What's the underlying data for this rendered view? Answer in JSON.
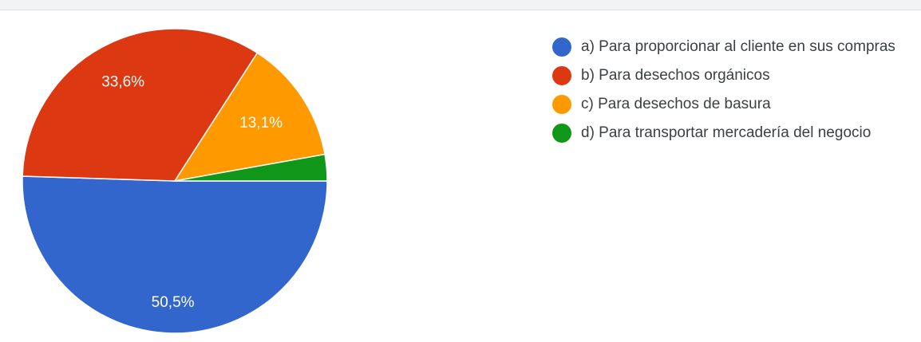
{
  "chart_data": {
    "type": "pie",
    "categories": [
      "a) Para proporcionar al cliente en sus compras",
      "b) Para desechos orgánicos",
      "c) Para desechos de basura",
      "d) Para transportar mercadería del negocio"
    ],
    "values": [
      50.5,
      33.6,
      13.1,
      2.8
    ],
    "value_labels": [
      "50,5%",
      "33,6%",
      "13,1%",
      null
    ],
    "colors": [
      "#3366cc",
      "#dc3912",
      "#ff9900",
      "#109618"
    ]
  }
}
